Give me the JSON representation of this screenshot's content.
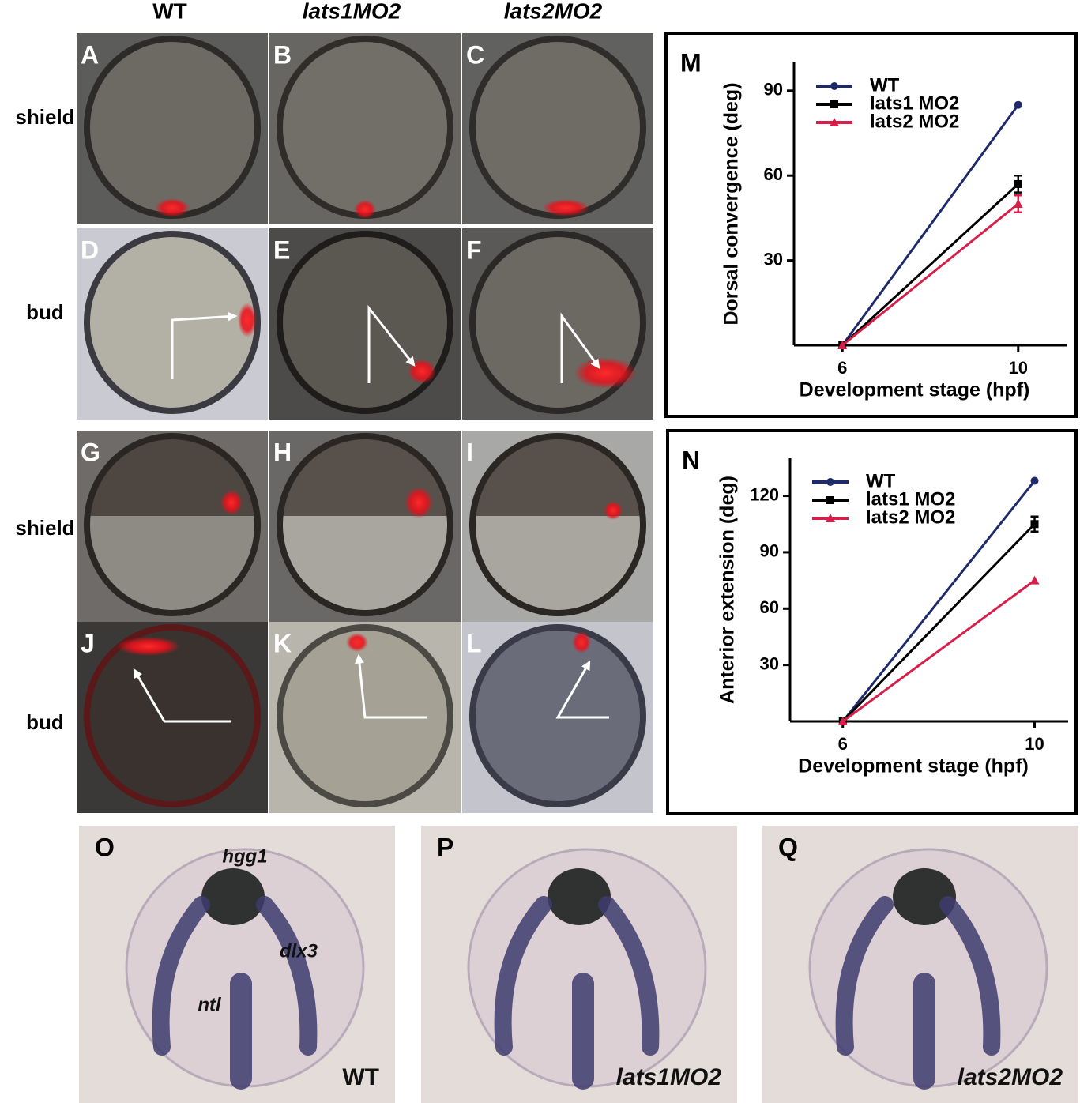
{
  "columns": [
    "WT",
    "lats1MO2",
    "lats2MO2"
  ],
  "rows": [
    "shield",
    "bud",
    "shield",
    "bud"
  ],
  "panels": [
    "A",
    "B",
    "C",
    "D",
    "E",
    "F",
    "G",
    "H",
    "I",
    "J",
    "K",
    "L"
  ],
  "bottom_panels": [
    {
      "letter": "O",
      "labels": [
        "hgg1",
        "dlx3",
        "ntl"
      ],
      "caption": "WT"
    },
    {
      "letter": "P",
      "caption": "lats1MO2"
    },
    {
      "letter": "Q",
      "caption": "lats2MO2"
    }
  ],
  "chart_data": [
    {
      "type": "line",
      "label": "M",
      "ylabel": "Dorsal convergence (deg)",
      "xlabel": "Development stage (hpf)",
      "x": [
        6,
        10
      ],
      "xlim": [
        4.9,
        11.1
      ],
      "xticks": [
        6,
        10
      ],
      "ylim": [
        0,
        100
      ],
      "yticks": [
        30,
        60,
        90
      ],
      "series": [
        {
          "name": "WT",
          "color": "#1f2a6b",
          "marker": "circle",
          "values": [
            0,
            85
          ],
          "errors": [
            null,
            null
          ]
        },
        {
          "name": "lats1 MO2",
          "color": "#000000",
          "marker": "square",
          "values": [
            0,
            57
          ],
          "errors": [
            null,
            3
          ]
        },
        {
          "name": "lats2 MO2",
          "color": "#d6204a",
          "marker": "triangle",
          "values": [
            0,
            50
          ],
          "errors": [
            null,
            3
          ]
        }
      ]
    },
    {
      "type": "line",
      "label": "N",
      "ylabel": "Anterior extension (deg)",
      "xlabel": "Development stage (hpf)",
      "x": [
        6,
        10
      ],
      "xlim": [
        4.9,
        10.7
      ],
      "xticks": [
        6,
        10
      ],
      "ylim": [
        0,
        140
      ],
      "yticks": [
        30,
        60,
        90,
        120
      ],
      "series": [
        {
          "name": "WT",
          "color": "#1f2a6b",
          "marker": "circle",
          "values": [
            0,
            128
          ],
          "errors": [
            null,
            null
          ]
        },
        {
          "name": "lats1 MO2",
          "color": "#000000",
          "marker": "square",
          "values": [
            0,
            105
          ],
          "errors": [
            null,
            4
          ]
        },
        {
          "name": "lats2 MO2",
          "color": "#d6204a",
          "marker": "triangle",
          "values": [
            0,
            75
          ],
          "errors": [
            null,
            null
          ]
        }
      ]
    }
  ]
}
